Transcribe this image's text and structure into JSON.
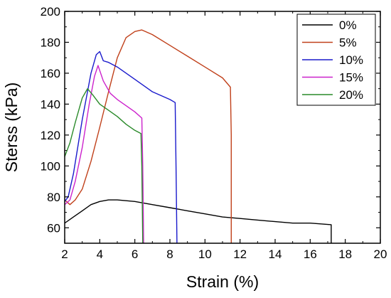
{
  "chart_data": {
    "type": "line",
    "xlabel": "Strain (%)",
    "ylabel": "Sterss (kPa)",
    "xlim": [
      2,
      20
    ],
    "ylim": [
      50,
      200
    ],
    "xticks": [
      2,
      4,
      6,
      8,
      10,
      12,
      14,
      16,
      18,
      20
    ],
    "yticks": [
      60,
      80,
      100,
      120,
      140,
      160,
      180,
      200
    ],
    "xtick_labels": [
      "2",
      "4",
      "6",
      "8",
      "10",
      "12",
      "14",
      "16",
      "18",
      "20"
    ],
    "ytick_labels": [
      "60",
      "80",
      "100",
      "120",
      "140",
      "160",
      "180",
      "200"
    ],
    "grid": false,
    "legend_position": "top-right",
    "series": [
      {
        "name": "0%",
        "color": "#000000",
        "x": [
          2.0,
          2.5,
          3.0,
          3.5,
          4.0,
          4.5,
          5.0,
          6.0,
          7.0,
          8.0,
          9.0,
          10.0,
          11.0,
          12.0,
          13.0,
          14.0,
          15.0,
          16.0,
          17.2,
          17.2
        ],
        "y": [
          63,
          67,
          71,
          75,
          77,
          78,
          78,
          77,
          75,
          73,
          71,
          69,
          67,
          66,
          65,
          64,
          63,
          63,
          62,
          50
        ]
      },
      {
        "name": "5%",
        "color": "#c0401a",
        "x": [
          2.0,
          2.3,
          2.6,
          3.0,
          3.5,
          4.0,
          4.5,
          5.0,
          5.5,
          6.0,
          6.4,
          7.0,
          8.0,
          9.0,
          10.0,
          11.0,
          11.45,
          11.5,
          11.5
        ],
        "y": [
          78,
          75,
          78,
          85,
          103,
          125,
          148,
          170,
          183,
          187,
          188,
          185,
          178,
          171,
          164,
          157,
          151,
          120,
          50
        ]
      },
      {
        "name": "10%",
        "color": "#1a1acc",
        "x": [
          2.0,
          2.2,
          2.5,
          3.0,
          3.5,
          3.8,
          4.0,
          4.2,
          4.5,
          5.0,
          6.0,
          7.0,
          8.0,
          8.3,
          8.35,
          8.4
        ],
        "y": [
          77,
          80,
          95,
          130,
          160,
          172,
          174,
          168,
          167,
          164,
          156,
          148,
          143,
          141,
          100,
          50
        ]
      },
      {
        "name": "15%",
        "color": "#cc22cc",
        "x": [
          2.0,
          2.3,
          2.6,
          3.0,
          3.4,
          3.7,
          3.9,
          4.2,
          4.6,
          5.0,
          5.5,
          6.0,
          6.4,
          6.45,
          6.5
        ],
        "y": [
          75,
          78,
          90,
          112,
          140,
          158,
          165,
          155,
          147,
          143,
          139,
          135,
          131,
          100,
          50
        ]
      },
      {
        "name": "20%",
        "color": "#2a8a2a",
        "x": [
          2.0,
          2.3,
          2.6,
          3.0,
          3.3,
          3.6,
          4.0,
          4.5,
          5.0,
          5.5,
          6.0,
          6.35,
          6.4,
          6.45
        ],
        "y": [
          106,
          115,
          128,
          144,
          150,
          146,
          140,
          136,
          132,
          127,
          123,
          121,
          100,
          50
        ]
      }
    ]
  }
}
